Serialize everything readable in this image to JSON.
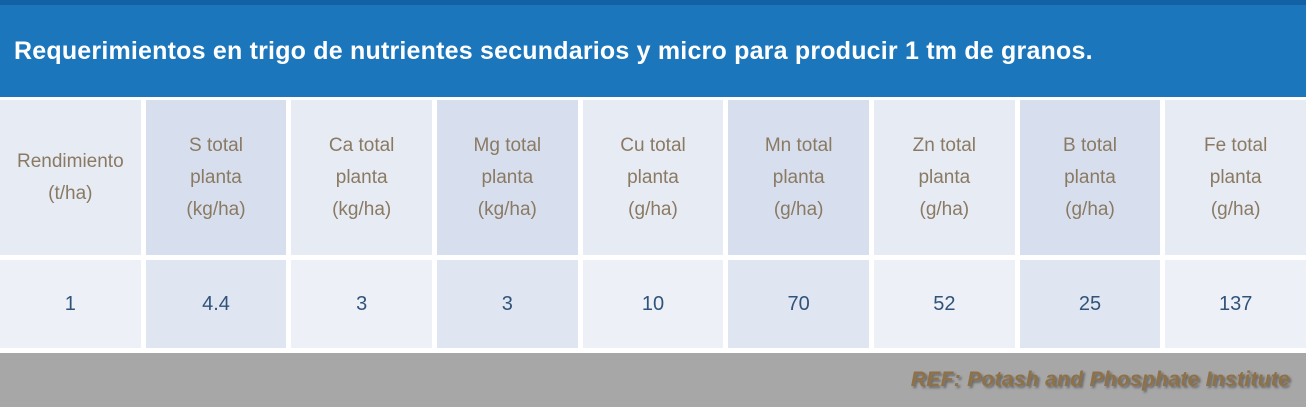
{
  "title": "Requerimientos en trigo de nutrientes secundarios y micro para producir 1 tm de granos.",
  "table": {
    "columns": [
      {
        "label": "Rendimiento\n(t/ha)"
      },
      {
        "label": "S total\nplanta\n(kg/ha)"
      },
      {
        "label": "Ca total\nplanta\n(kg/ha)"
      },
      {
        "label": "Mg total\nplanta\n(kg/ha)"
      },
      {
        "label": "Cu total\nplanta\n(g/ha)"
      },
      {
        "label": "Mn total\nplanta\n(g/ha)"
      },
      {
        "label": "Zn total\nplanta\n(g/ha)"
      },
      {
        "label": "B total\nplanta\n(g/ha)"
      },
      {
        "label": "Fe total\nplanta\n(g/ha)"
      }
    ],
    "rows": [
      {
        "cells": [
          "1",
          "4.4",
          "3",
          "3",
          "10",
          "70",
          "52",
          "25",
          "137"
        ]
      }
    ]
  },
  "footer": {
    "ref": "REF: Potash and Phosphate Institute"
  },
  "colors": {
    "title_bar": "#1b76bc",
    "title_text": "#ffffff",
    "header_cell_light": "#e7ebf4",
    "header_cell_dark": "#d7dfee",
    "data_cell_light": "#edf0f7",
    "data_cell_dark": "#e0e6f1",
    "header_text": "#8a7a63",
    "data_text": "#31537a",
    "footer_bar": "#a7a7a7",
    "footer_text": "#8f7148"
  },
  "chart_data": {
    "type": "table",
    "title": "Requerimientos en trigo de nutrientes secundarios y micro para producir 1 tm de granos.",
    "columns": [
      "Rendimiento (t/ha)",
      "S total planta (kg/ha)",
      "Ca total planta (kg/ha)",
      "Mg total planta (kg/ha)",
      "Cu total planta (g/ha)",
      "Mn total planta (g/ha)",
      "Zn total planta (g/ha)",
      "B total planta (g/ha)",
      "Fe total planta (g/ha)"
    ],
    "rows": [
      [
        1,
        4.4,
        3,
        3,
        10,
        70,
        52,
        25,
        137
      ]
    ],
    "source": "REF: Potash and Phosphate Institute"
  }
}
